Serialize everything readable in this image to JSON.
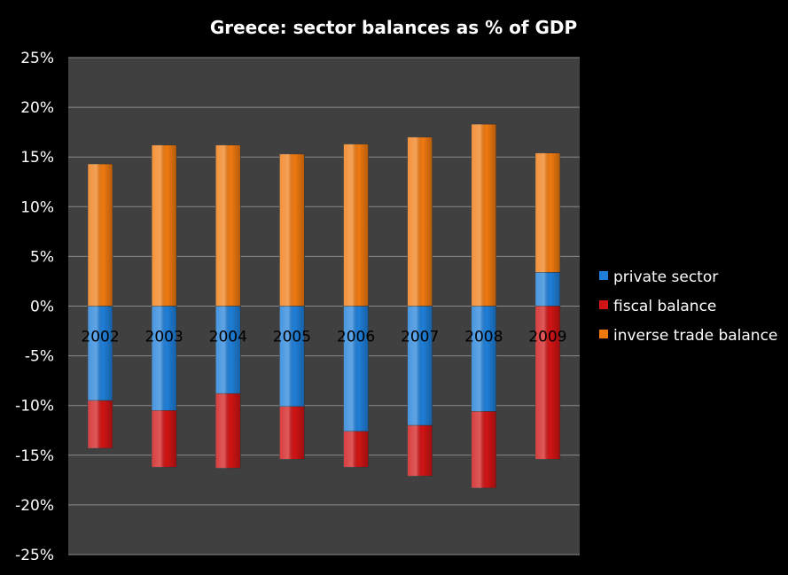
{
  "chart_data": {
    "type": "bar",
    "stacked": true,
    "title": "Greece: sector balances as % of GDP",
    "categories": [
      "2002",
      "2003",
      "2004",
      "2005",
      "2006",
      "2007",
      "2008",
      "2009"
    ],
    "series": [
      {
        "name": "private sector",
        "color": "#1f7fd8",
        "values": [
          -9.5,
          -10.5,
          -8.8,
          -10.1,
          -12.6,
          -12.0,
          -10.6,
          3.4
        ]
      },
      {
        "name": "fiscal balance",
        "color": "#d01414",
        "values": [
          -4.8,
          -5.7,
          -7.5,
          -5.3,
          -3.6,
          -5.1,
          -7.7,
          -15.4
        ]
      },
      {
        "name": "inverse trade balance",
        "color": "#f07a10",
        "values": [
          14.3,
          16.2,
          16.2,
          15.3,
          16.3,
          17.0,
          18.3,
          12.0
        ]
      }
    ],
    "ylim": [
      -25,
      25
    ],
    "yticks": [
      "25%",
      "20%",
      "15%",
      "10%",
      "5%",
      "0%",
      "-5%",
      "-10%",
      "-15%",
      "-20%",
      "-25%"
    ],
    "grid": true,
    "legend": "right"
  }
}
